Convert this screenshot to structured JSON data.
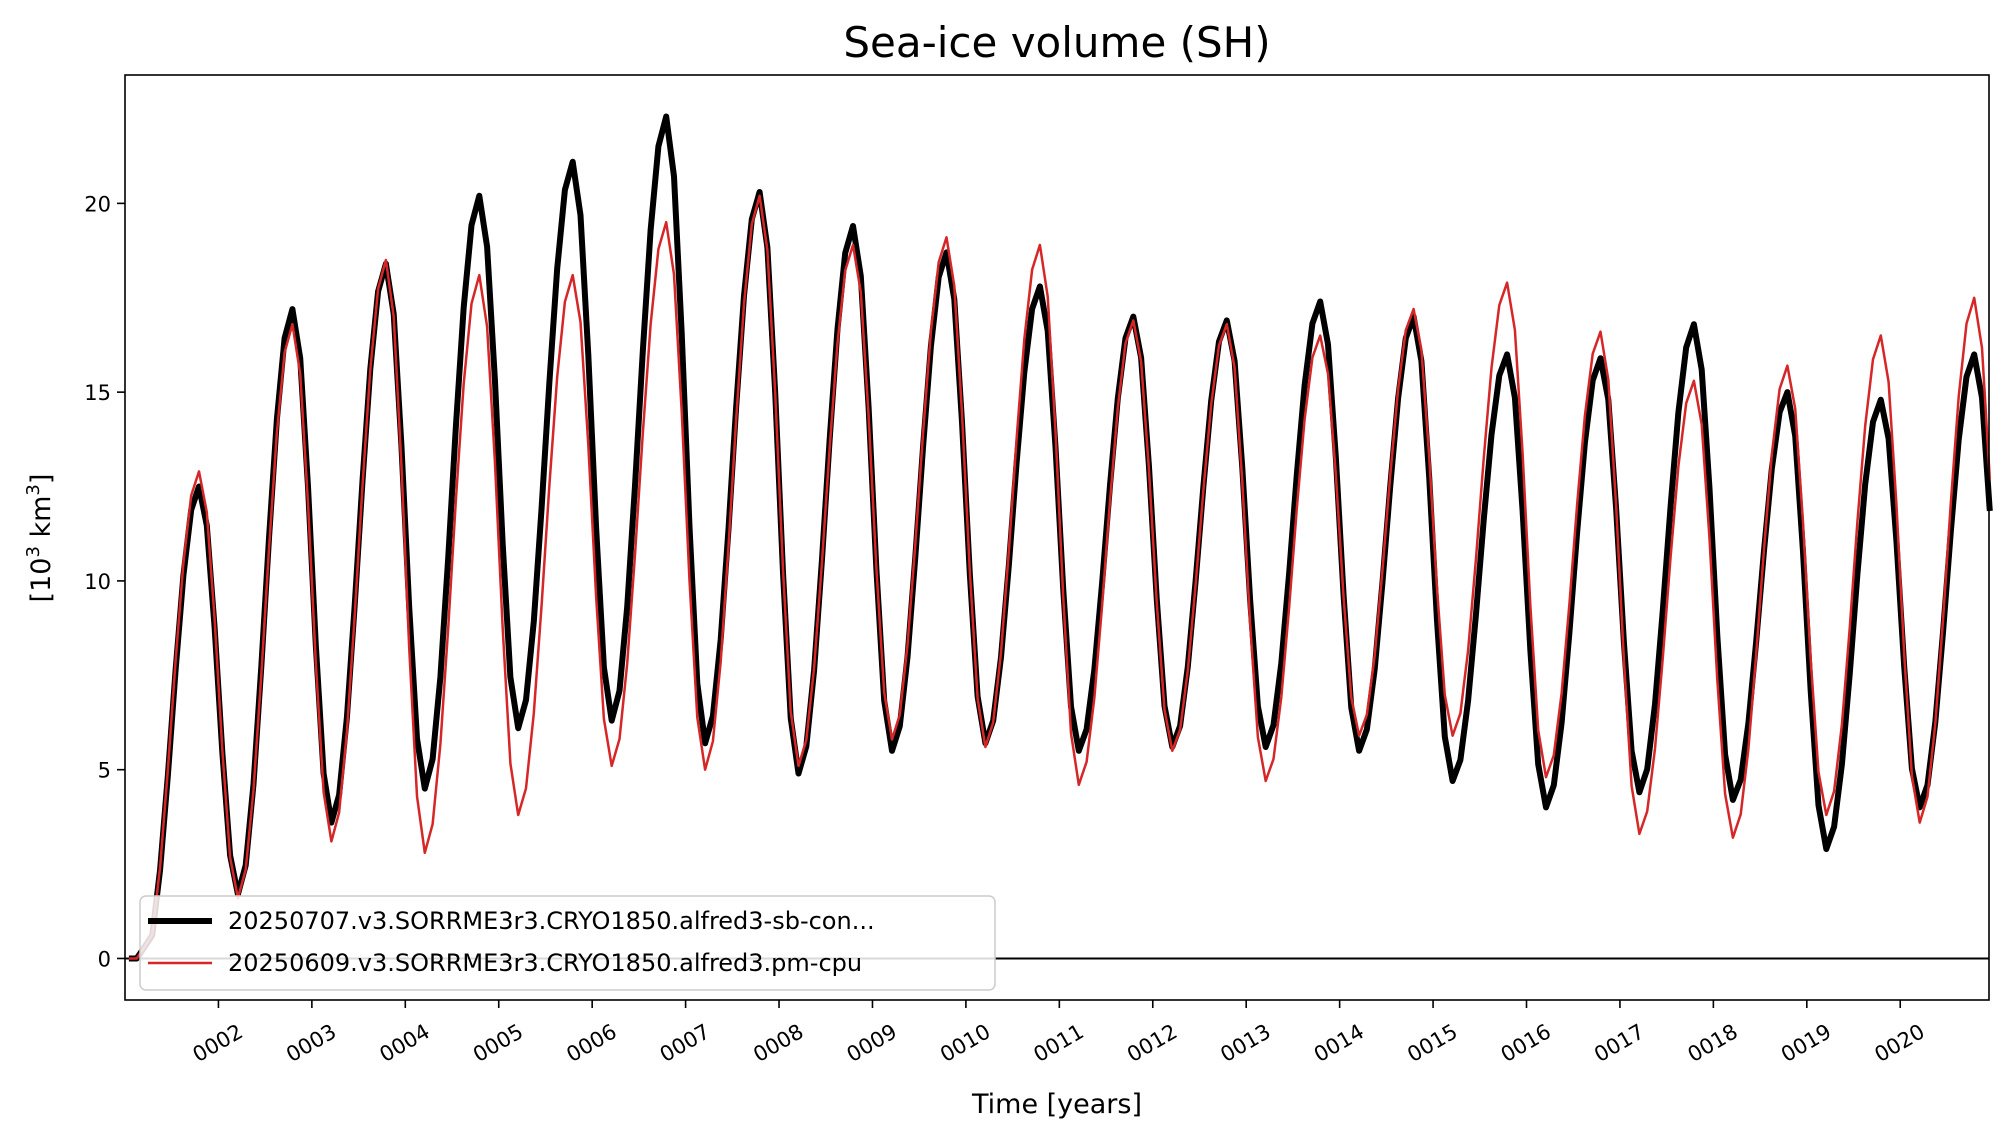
{
  "chart_data": {
    "type": "line",
    "title": "Sea-ice volume (SH)",
    "xlabel": "Time [years]",
    "ylabel_base": "[10",
    "ylabel_exp1": "3",
    "ylabel_mid": " km",
    "ylabel_exp2": "3",
    "ylabel_end": "]",
    "xlim": [
      1.0,
      20.95
    ],
    "ylim": [
      -1.1,
      23.4
    ],
    "yticks": [
      0,
      5,
      10,
      15,
      20
    ],
    "xtick_labels": [
      "0002",
      "0003",
      "0004",
      "0005",
      "0006",
      "0007",
      "0008",
      "0009",
      "0010",
      "0011",
      "0012",
      "0013",
      "0014",
      "0015",
      "0016",
      "0017",
      "0018",
      "0019",
      "0020"
    ],
    "zero_line": true,
    "legend_position": "lower left",
    "months_per_year": 12,
    "series": [
      {
        "name": "20250707.v3.SORRME3r3.CRYO1850.alfred3-sb-con...",
        "color": "#000000",
        "x_start": 1.042,
        "peaks": [
          12.5,
          17.2,
          18.4,
          20.2,
          21.1,
          22.3,
          20.3,
          19.4,
          18.7,
          17.8,
          17.0,
          16.9,
          17.4,
          17.0,
          16.0,
          15.9,
          16.8,
          15.0,
          14.8,
          16.0
        ],
        "troughs": [
          0.0,
          1.7,
          3.6,
          4.5,
          6.1,
          6.3,
          5.7,
          4.9,
          5.5,
          5.7,
          5.5,
          5.6,
          5.6,
          5.5,
          4.7,
          4.0,
          4.4,
          4.2,
          2.9,
          4.0
        ]
      },
      {
        "name": "20250609.v3.SORRME3r3.CRYO1850.alfred3.pm-cpu",
        "color": "#d62728",
        "x_start": 1.042,
        "peaks": [
          12.9,
          16.8,
          18.5,
          18.1,
          18.1,
          19.5,
          20.2,
          18.9,
          19.1,
          18.9,
          16.9,
          16.8,
          16.5,
          17.2,
          17.9,
          16.6,
          15.3,
          15.7,
          16.5,
          17.5
        ],
        "troughs": [
          0.0,
          1.6,
          3.1,
          2.8,
          3.8,
          5.1,
          5.0,
          5.1,
          5.8,
          5.6,
          4.6,
          5.5,
          4.7,
          5.9,
          5.9,
          4.8,
          3.3,
          3.2,
          3.8,
          3.6
        ]
      }
    ]
  }
}
